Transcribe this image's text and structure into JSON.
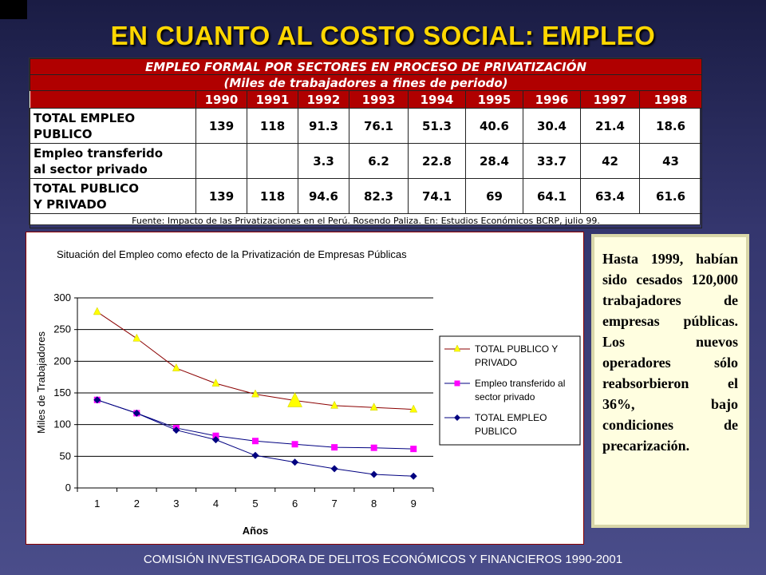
{
  "slide": {
    "title": "EN CUANTO AL COSTO SOCIAL:  EMPLEO",
    "footer": "COMISIÓN INVESTIGADORA DE DELITOS ECONÓMICOS Y FINANCIEROS  1990-2001"
  },
  "table": {
    "title": "EMPLEO FORMAL POR SECTORES EN PROCESO DE PRIVATIZACIÓN",
    "subtitle": "(Miles de trabajadores a fines de periodo)",
    "years": [
      "1990",
      "1991",
      "1992",
      "1993",
      "1994",
      "1995",
      "1996",
      "1997",
      "1998"
    ],
    "rows": [
      {
        "label1": "TOTAL EMPLEO",
        "label2": "PUBLICO",
        "values": [
          "139",
          "118",
          "91.3",
          "76.1",
          "51.3",
          "40.6",
          "30.4",
          "21.4",
          "18.6"
        ]
      },
      {
        "label1": "Empleo transferido",
        "label2": "al sector privado",
        "values": [
          "",
          "",
          "3.3",
          "6.2",
          "22.8",
          "28.4",
          "33.7",
          "42",
          "43"
        ]
      },
      {
        "label1": "TOTAL PUBLICO",
        "label2": "Y PRIVADO",
        "values": [
          "139",
          "118",
          "94.6",
          "82.3",
          "74.1",
          "69",
          "64.1",
          "63.4",
          "61.6"
        ]
      }
    ],
    "source": "Fuente: Impacto de las Privatizaciones en el Perú. Rosendo Paliza. En: Estudios Económicos BCRP, julio 99."
  },
  "note": {
    "text": "Hasta 1999, habían sido cesados 120,000 trabajadores de empresas públicas. Los nuevos operadores sólo reabsorbieron el 36%, bajo condiciones de precarización."
  },
  "chart_data": {
    "type": "line",
    "title": "Situación del Empleo como efecto de la Privatización de Empresas Públicas",
    "xlabel": "Años",
    "ylabel": "Miles de Trabajadores",
    "x": [
      1,
      2,
      3,
      4,
      5,
      6,
      7,
      8,
      9
    ],
    "ylim": [
      0,
      300
    ],
    "yticks": [
      0,
      50,
      100,
      150,
      200,
      250,
      300
    ],
    "legend_position": "right",
    "series": [
      {
        "name": "TOTAL PUBLICO Y PRIVADO",
        "color": "#ffff00",
        "marker": "triangle",
        "values": [
          278,
          236,
          189,
          165,
          148,
          138,
          130,
          127,
          124
        ]
      },
      {
        "name": "Empleo transferido al sector privado",
        "color": "#ff00ff",
        "marker": "square",
        "values": [
          139,
          118,
          94.6,
          82.3,
          74.1,
          69,
          64.1,
          63.4,
          61.6
        ]
      },
      {
        "name": "TOTAL EMPLEO PUBLICO",
        "color": "#000080",
        "marker": "diamond",
        "values": [
          139,
          118,
          91.3,
          76.1,
          51.3,
          40.6,
          30.4,
          21.4,
          18.6
        ]
      }
    ]
  }
}
